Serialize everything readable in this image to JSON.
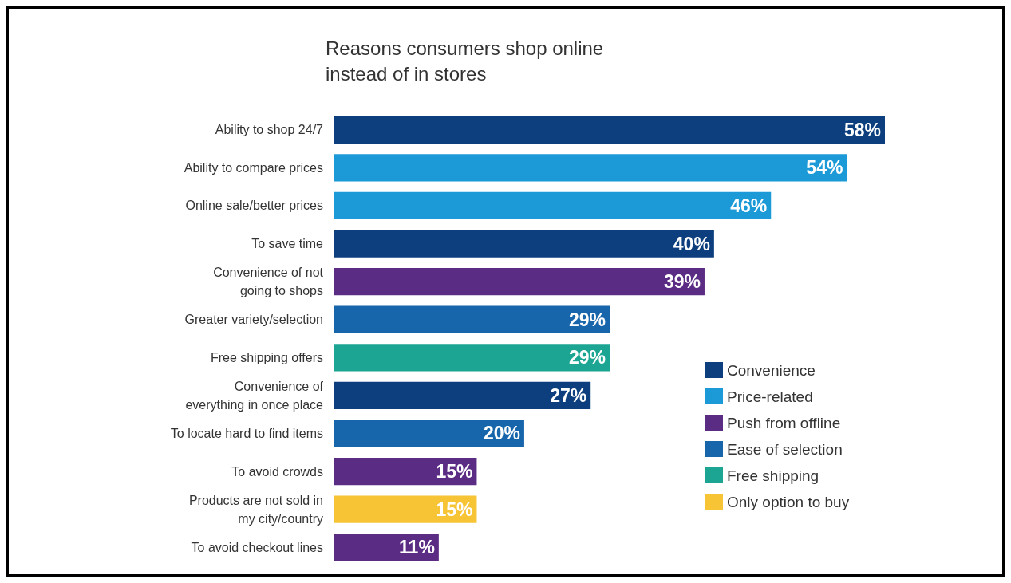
{
  "chart_data": {
    "type": "bar",
    "orientation": "horizontal",
    "stacked": true,
    "title": "Reasons consumers shop online\ninstead of in stores",
    "categories": [
      "Ability to shop 24/7",
      "Ability to compare prices",
      "Online sale/better prices",
      "To save time",
      "Convenience of not\ngoing to shops",
      "Greater variety/selection",
      "Free shipping offers",
      "Convenience of\neverything in once place",
      "To locate hard to find items",
      "To avoid crowds",
      "Products are not sold in\nmy city/country",
      "To avoid checkout lines"
    ],
    "series": [
      {
        "name": "Convenience",
        "color": "#0d3f7f",
        "values": [
          58,
          null,
          null,
          40,
          null,
          null,
          null,
          27,
          null,
          null,
          null,
          null
        ],
        "value_labels": [
          "58%",
          null,
          null,
          "40%",
          null,
          null,
          null,
          "27%",
          null,
          null,
          null,
          null
        ]
      },
      {
        "name": "Price-related",
        "color": "#1b9ad7",
        "values": [
          null,
          54,
          46,
          null,
          null,
          null,
          null,
          null,
          null,
          null,
          null,
          null
        ],
        "value_labels": [
          null,
          "54%",
          "46%",
          null,
          null,
          null,
          null,
          null,
          null,
          null,
          null,
          null
        ]
      },
      {
        "name": "Push from offline",
        "color": "#5b2c83",
        "values": [
          null,
          null,
          null,
          null,
          39,
          null,
          null,
          null,
          null,
          15,
          null,
          11
        ],
        "value_labels": [
          null,
          null,
          null,
          null,
          "39%",
          null,
          null,
          null,
          null,
          "15%",
          null,
          "11%"
        ]
      },
      {
        "name": "Ease of selection",
        "color": "#1765aa",
        "values": [
          null,
          null,
          null,
          null,
          null,
          29,
          null,
          null,
          20,
          null,
          null,
          null
        ],
        "value_labels": [
          null,
          null,
          null,
          null,
          null,
          "29%",
          null,
          null,
          "20%",
          null,
          null,
          null
        ]
      },
      {
        "name": "Free shipping",
        "color": "#1ba592",
        "values": [
          null,
          null,
          null,
          null,
          null,
          null,
          29,
          null,
          null,
          null,
          null,
          null
        ],
        "value_labels": [
          null,
          null,
          null,
          null,
          null,
          null,
          "29%",
          null,
          null,
          null,
          null,
          null
        ]
      },
      {
        "name": "Only option to buy",
        "color": "#f6c434",
        "values": [
          null,
          null,
          null,
          null,
          null,
          null,
          null,
          null,
          null,
          null,
          15,
          null
        ],
        "value_labels": [
          null,
          null,
          null,
          null,
          null,
          null,
          null,
          null,
          null,
          null,
          "15%",
          null
        ]
      }
    ],
    "legend": "bottom right",
    "grid": false
  }
}
